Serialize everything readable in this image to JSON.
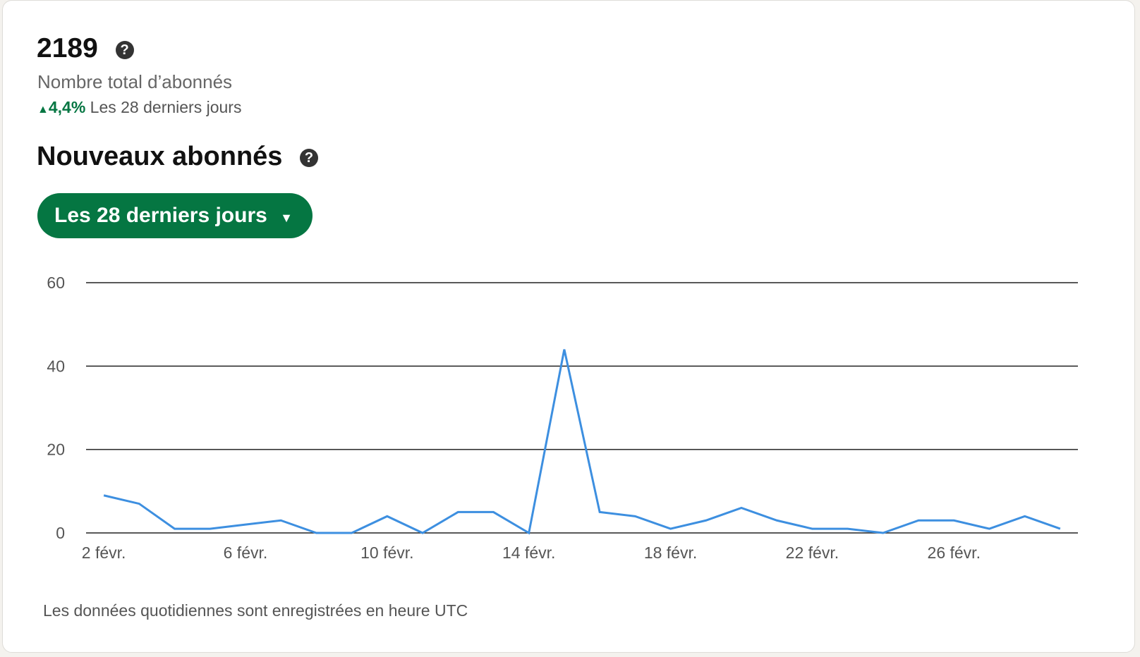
{
  "header": {
    "total": "2189",
    "total_label": "Nombre total d’abonnés",
    "change": "4,4%",
    "change_period": "Les 28 derniers jours"
  },
  "section": {
    "title": "Nouveaux abonnés",
    "dropdown": "Les 28 derniers jours"
  },
  "footnote": "Les données quotidiennes sont enregistrées en heure UTC",
  "chart_data": {
    "type": "line",
    "categories": [
      "2 févr.",
      null,
      null,
      null,
      "6 févr.",
      null,
      null,
      null,
      "10 févr.",
      null,
      null,
      null,
      "14 févr.",
      null,
      null,
      null,
      "18 févr.",
      null,
      null,
      null,
      "22 févr.",
      null,
      null,
      null,
      "26 févr.",
      null,
      null,
      null
    ],
    "series": [
      {
        "name": "Nouveaux abonnés",
        "color": "#3d8fe0",
        "values": [
          9,
          7,
          1,
          1,
          2,
          3,
          0,
          0,
          4,
          0,
          5,
          5,
          0,
          44,
          5,
          4,
          1,
          3,
          6,
          3,
          1,
          1,
          0,
          3,
          3,
          1,
          4,
          1
        ]
      }
    ],
    "ylim": [
      0,
      60
    ],
    "yticks": [
      0,
      20,
      40,
      60
    ],
    "grid": true
  }
}
